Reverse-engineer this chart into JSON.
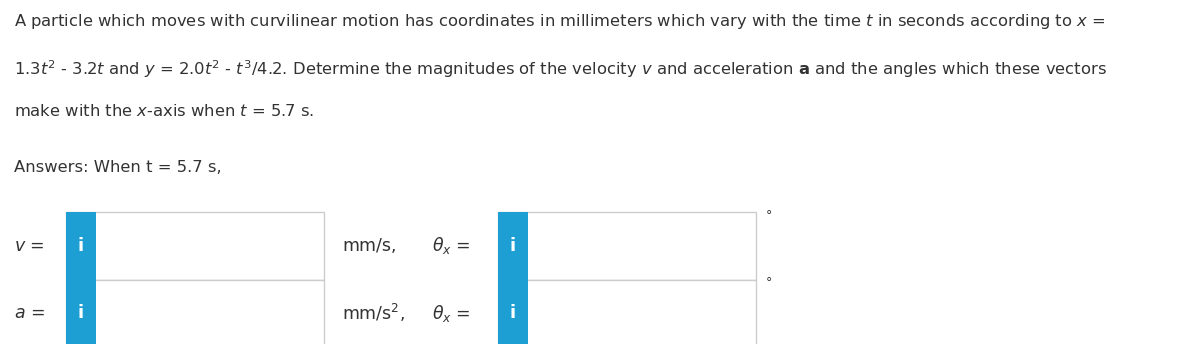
{
  "background_color": "#ffffff",
  "answer_label": "Answers: When t = 5.7 s,",
  "row1_label": "v =",
  "row1_unit": "mm/s,",
  "row1_theta": "\\theta_x =",
  "row1_degree": "°",
  "row2_label": "a =",
  "row2_unit": "mm/s$^2$,",
  "row2_theta": "\\theta_x =",
  "row2_degree": "°",
  "input_box_fill": "#ffffff",
  "input_box_border": "#cccccc",
  "blue_tab_color": "#1e9fd4",
  "blue_tab_text": "i",
  "blue_tab_text_color": "#ffffff",
  "text_color": "#333333",
  "font_size_body": 11.8,
  "font_size_label": 12.5,
  "font_size_unit": 12.5,
  "line1": "A particle which moves with curvilinear motion has coordinates in millimeters which vary with the time $t$ in seconds according to $x$ =",
  "line2": "1.3$t^2$ - 3.2$t$ and $y$ = 2.0$t^2$ - $t^3$/4.2. Determine the magnitudes of the velocity $v$ and acceleration $\\mathbf{a}$ and the angles which these vectors",
  "line3": "make with the $x$-axis when $t$ = 5.7 s."
}
